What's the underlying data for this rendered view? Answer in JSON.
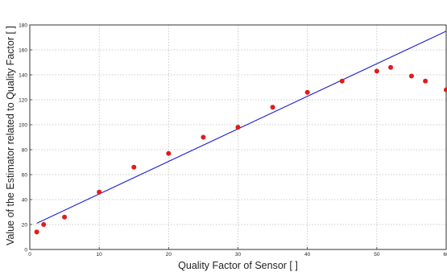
{
  "chart_data": {
    "type": "scatter",
    "title": "",
    "xlabel": "Quality Factor of Sensor [ ]",
    "ylabel": "Value of the Estimator related to Quality Factor [ ]",
    "xlim": [
      0,
      60
    ],
    "ylim": [
      0,
      180
    ],
    "xticks": [
      0,
      10,
      20,
      30,
      40,
      50,
      60
    ],
    "yticks": [
      0,
      20,
      40,
      60,
      80,
      100,
      120,
      140,
      160,
      180
    ],
    "grid": true,
    "series": [
      {
        "type": "scatter",
        "color": "#e41a1c",
        "x": [
          1,
          2,
          5,
          10,
          15,
          20,
          25,
          30,
          35,
          40,
          45,
          50,
          52,
          55,
          57,
          60
        ],
        "y": [
          14,
          20,
          26,
          46,
          66,
          77,
          90,
          98,
          114,
          126,
          135,
          143,
          146,
          139,
          135,
          128
        ]
      },
      {
        "type": "line",
        "color": "#1f1fd6",
        "x": [
          1,
          60
        ],
        "y": [
          21,
          175
        ]
      }
    ]
  }
}
